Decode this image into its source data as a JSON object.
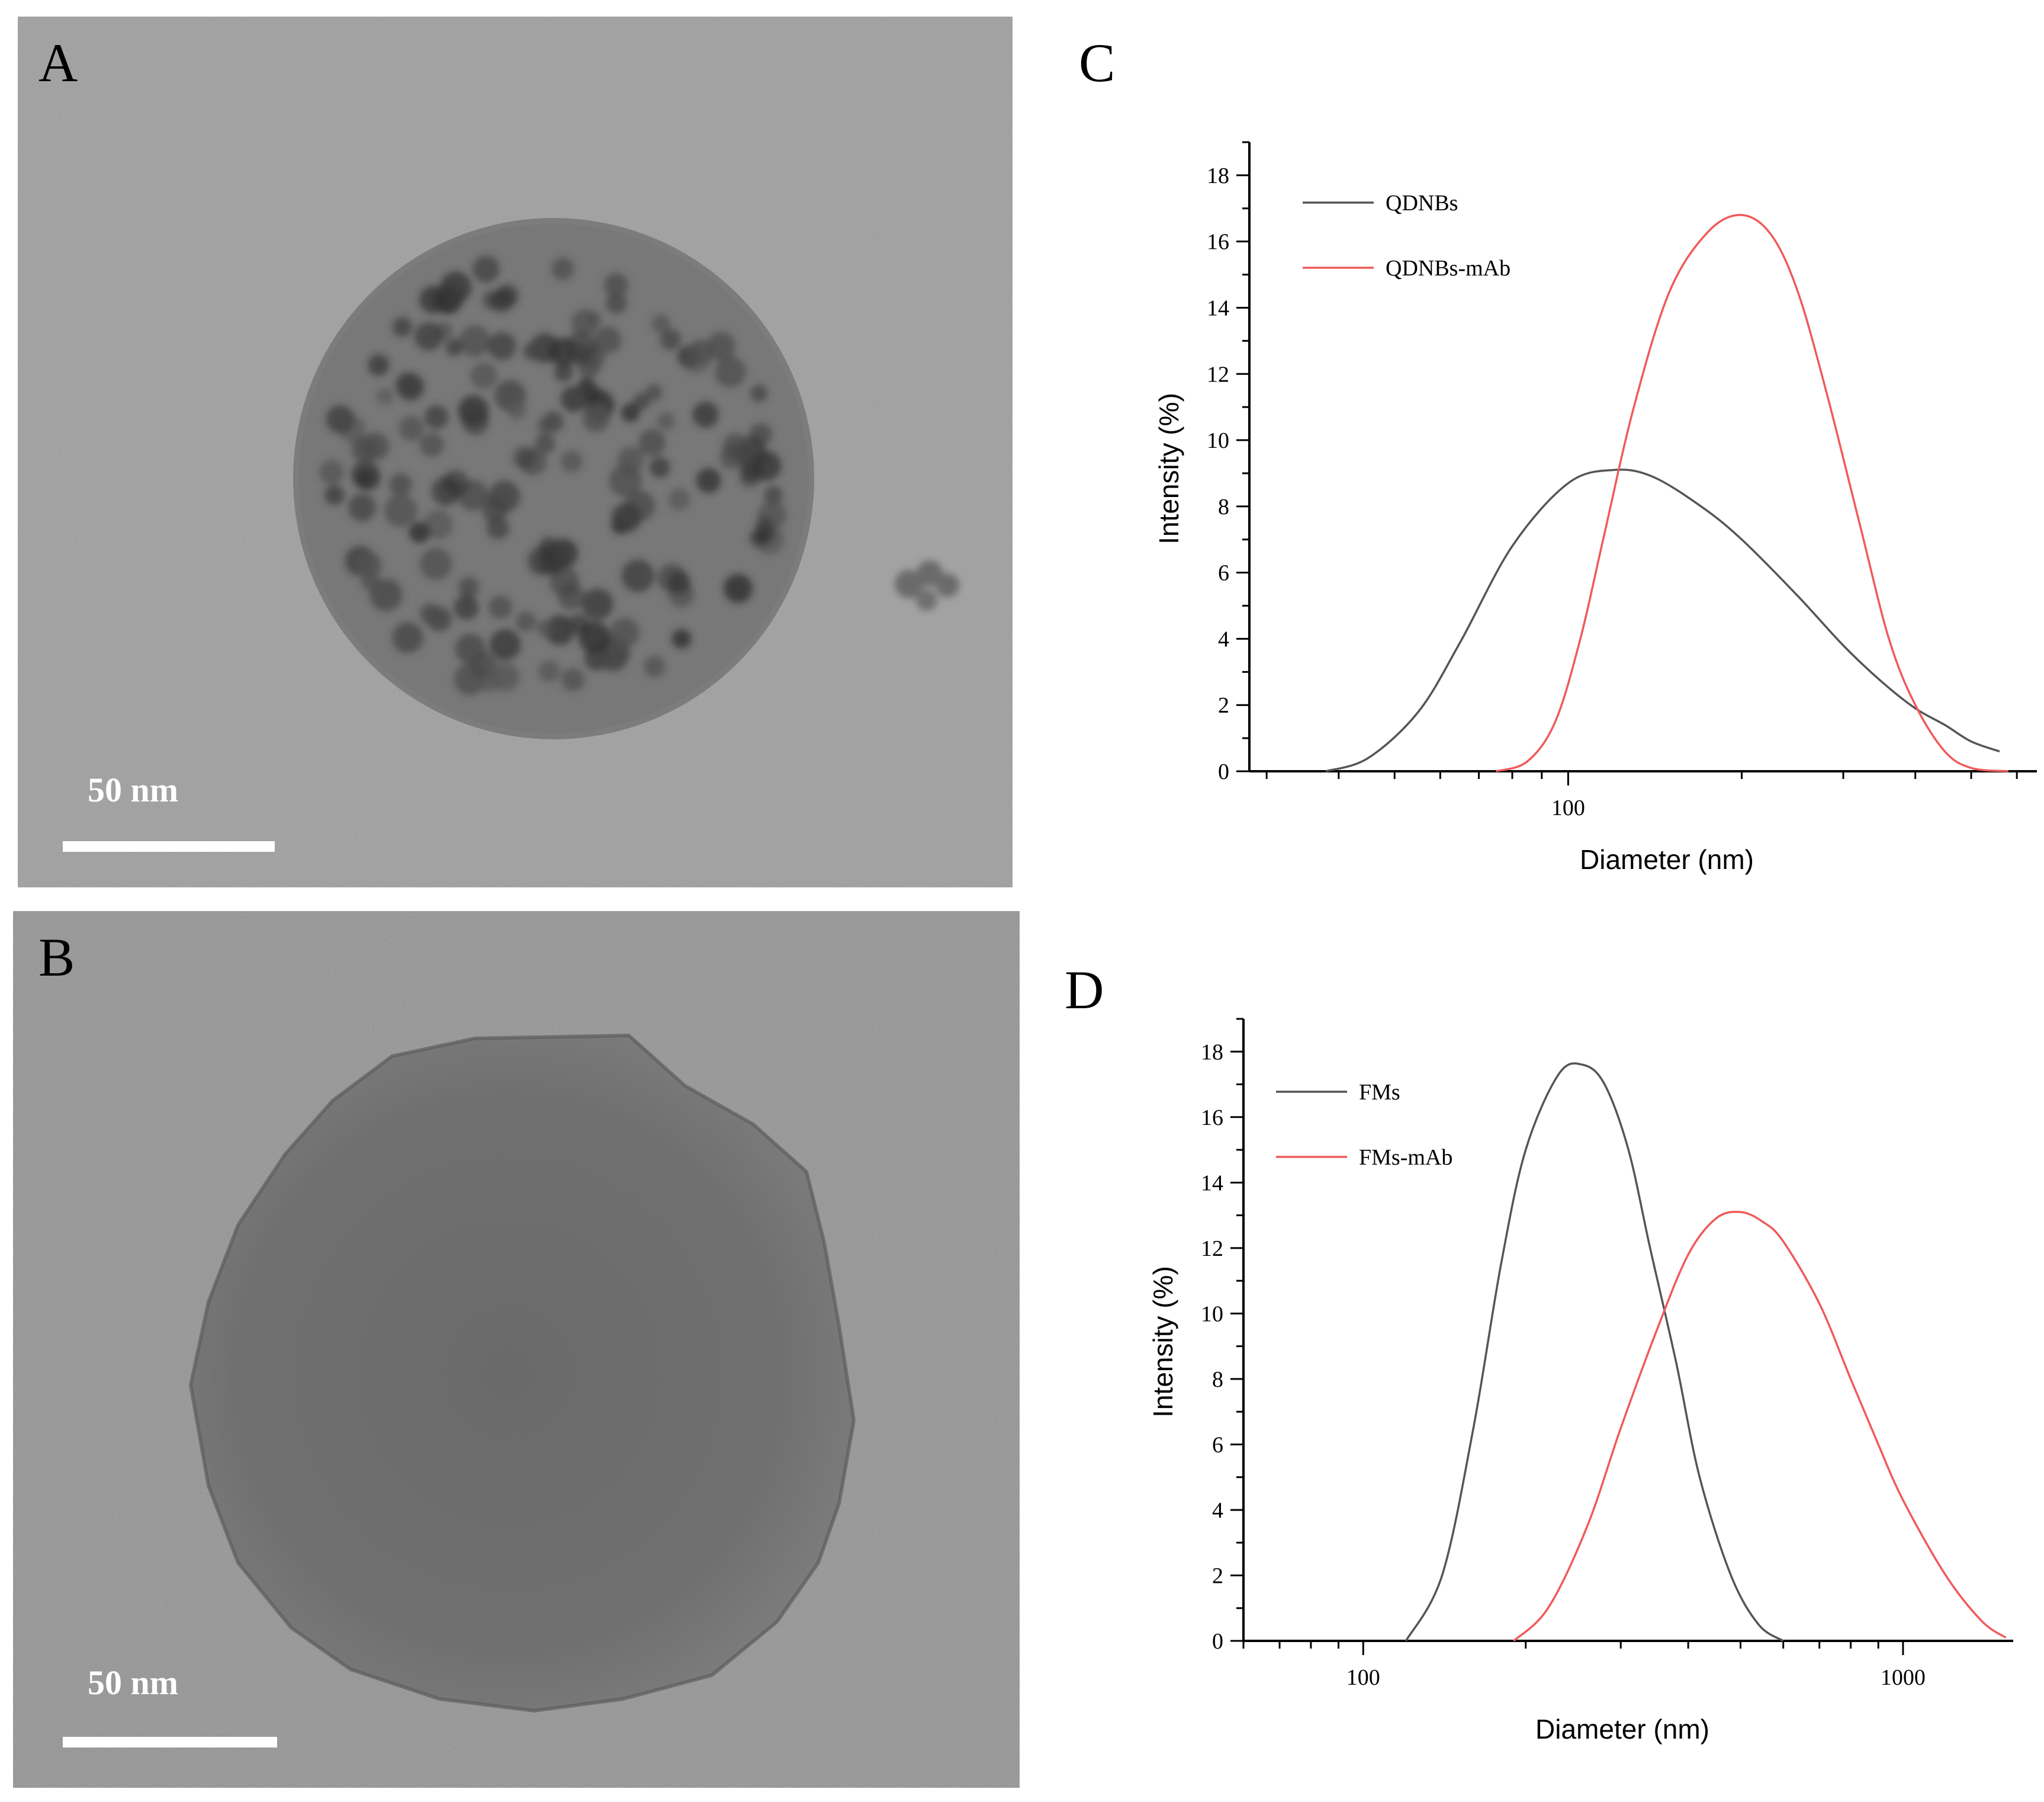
{
  "panels": {
    "A": {
      "letter": "A",
      "scale_bar_label": "50 nm"
    },
    "B": {
      "letter": "B",
      "scale_bar_label": "50 nm"
    },
    "C": {
      "letter": "C"
    },
    "D": {
      "letter": "D"
    }
  },
  "colors": {
    "black_series": "#555555",
    "red_series": "#f05a5a"
  },
  "chart_data": [
    {
      "panel": "C",
      "type": "line",
      "title": "",
      "xlabel": "Diameter (nm)",
      "ylabel": "Intensity (%)",
      "x_scale": "log",
      "xlim": [
        28,
        650
      ],
      "ylim": [
        0,
        19
      ],
      "y_ticks": [
        0,
        2,
        4,
        6,
        8,
        10,
        12,
        14,
        16,
        18
      ],
      "x_tick_labels": [
        {
          "value": 100,
          "label": "100"
        }
      ],
      "legend_position": "top-left",
      "series": [
        {
          "name": "QDNBs",
          "color": "#555555",
          "x": [
            38,
            45,
            55,
            65,
            80,
            100,
            120,
            140,
            170,
            200,
            250,
            300,
            350,
            400,
            450,
            500,
            560
          ],
          "y": [
            0.0,
            0.4,
            1.8,
            3.9,
            6.8,
            8.7,
            9.1,
            8.9,
            8.0,
            7.0,
            5.3,
            3.8,
            2.7,
            1.9,
            1.4,
            0.9,
            0.6
          ]
        },
        {
          "name": "QDNBs-mAb",
          "color": "#f05a5a",
          "x": [
            75,
            85,
            95,
            105,
            115,
            130,
            150,
            175,
            200,
            225,
            250,
            280,
            320,
            360,
            400,
            450,
            500,
            580
          ],
          "y": [
            0.0,
            0.3,
            1.5,
            4.0,
            7.0,
            11.0,
            14.5,
            16.3,
            16.8,
            16.2,
            14.5,
            11.5,
            7.5,
            4.0,
            2.0,
            0.6,
            0.1,
            0.0
          ]
        }
      ]
    },
    {
      "panel": "D",
      "type": "line",
      "title": "",
      "xlabel": "Diameter (nm)",
      "ylabel": "Intensity (%)",
      "x_scale": "log",
      "xlim": [
        60,
        1600
      ],
      "ylim": [
        0,
        19
      ],
      "y_ticks": [
        0,
        2,
        4,
        6,
        8,
        10,
        12,
        14,
        16,
        18
      ],
      "x_tick_labels": [
        {
          "value": 100,
          "label": "100"
        },
        {
          "value": 1000,
          "label": "1000"
        }
      ],
      "legend_position": "top-left",
      "series": [
        {
          "name": "FMs",
          "color": "#555555",
          "x": [
            120,
            140,
            160,
            180,
            200,
            230,
            255,
            280,
            310,
            340,
            380,
            420,
            480,
            540,
            600
          ],
          "y": [
            0.0,
            2.0,
            6.5,
            11.5,
            15.0,
            17.3,
            17.6,
            17.0,
            15.0,
            12.0,
            8.5,
            5.0,
            2.0,
            0.5,
            0.0
          ]
        },
        {
          "name": "FMs-mAb",
          "color": "#f05a5a",
          "x": [
            190,
            220,
            260,
            300,
            350,
            400,
            450,
            500,
            550,
            600,
            700,
            800,
            900,
            1000,
            1200,
            1400,
            1550
          ],
          "y": [
            0.0,
            1.0,
            3.5,
            6.5,
            9.5,
            11.8,
            12.9,
            13.1,
            12.8,
            12.2,
            10.3,
            8.0,
            6.0,
            4.3,
            2.0,
            0.6,
            0.1
          ]
        }
      ]
    }
  ]
}
